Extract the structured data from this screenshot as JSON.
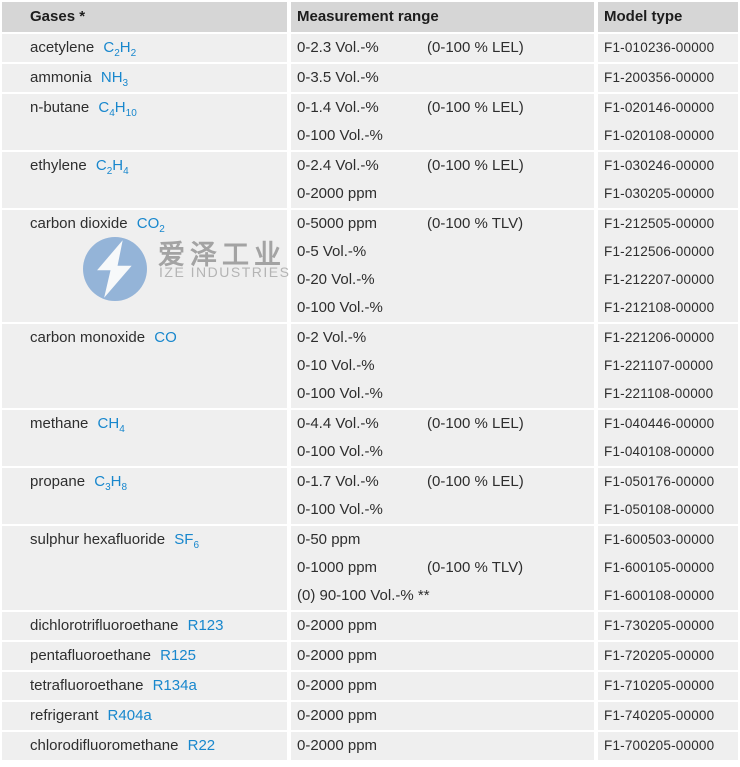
{
  "header": {
    "gases": "Gases *",
    "range": "Measurement range",
    "model": "Model type"
  },
  "watermark": {
    "cn": "爱泽工业",
    "en": "IZE INDUSTRIES",
    "logo": "ize-logo",
    "circle_color": "#85aad5",
    "text_color": "#9b9b9b"
  },
  "colors": {
    "accent_blue": "#1887cd",
    "header_bg": "#d6d6d6",
    "row_bg": "#efefef",
    "text_dark": "#2e2e2e"
  },
  "table": {
    "rows": [
      {
        "gas": "acetylene",
        "formula": "C{2}H{2}",
        "lines": [
          {
            "range": "0-2.3 Vol.-%",
            "note": "(0-100 % LEL)",
            "model": "F1-010236-00000"
          }
        ]
      },
      {
        "gas": "ammonia",
        "formula": "NH{3}",
        "lines": [
          {
            "range": "0-3.5 Vol.-%",
            "note": "",
            "model": "F1-200356-00000"
          }
        ]
      },
      {
        "gas": "n-butane",
        "formula": "C{4}H{10}",
        "lines": [
          {
            "range": "0-1.4 Vol.-%",
            "note": "(0-100 % LEL)",
            "model": "F1-020146-00000"
          },
          {
            "range": "0-100 Vol.-%",
            "note": "",
            "model": "F1-020108-00000"
          }
        ]
      },
      {
        "gas": "ethylene",
        "formula": "C{2}H{4}",
        "lines": [
          {
            "range": "0-2.4 Vol.-%",
            "note": "(0-100 % LEL)",
            "model": "F1-030246-00000"
          },
          {
            "range": "0-2000 ppm",
            "note": "",
            "model": "F1-030205-00000"
          }
        ]
      },
      {
        "gas": "carbon dioxide",
        "formula": "CO{2}",
        "lines": [
          {
            "range": "0-5000 ppm",
            "note": "(0-100 % TLV)",
            "model": "F1-212505-00000"
          },
          {
            "range": "0-5 Vol.-%",
            "note": "",
            "model": "F1-212506-00000"
          },
          {
            "range": "0-20 Vol.-%",
            "note": "",
            "model": "F1-212207-00000"
          },
          {
            "range": "0-100 Vol.-%",
            "note": "",
            "model": "F1-212108-00000"
          }
        ]
      },
      {
        "gas": "carbon monoxide",
        "formula": "CO",
        "lines": [
          {
            "range": "0-2 Vol.-%",
            "note": "",
            "model": "F1-221206-00000"
          },
          {
            "range": "0-10 Vol.-%",
            "note": "",
            "model": "F1-221107-00000"
          },
          {
            "range": "0-100 Vol.-%",
            "note": "",
            "model": "F1-221108-00000"
          }
        ]
      },
      {
        "gas": "methane",
        "formula": "CH{4}",
        "lines": [
          {
            "range": "0-4.4 Vol.-%",
            "note": "(0-100 % LEL)",
            "model": "F1-040446-00000"
          },
          {
            "range": "0-100 Vol.-%",
            "note": "",
            "model": "F1-040108-00000"
          }
        ]
      },
      {
        "gas": "propane",
        "formula": "C{3}H{8}",
        "lines": [
          {
            "range": "0-1.7 Vol.-%",
            "note": "(0-100 % LEL)",
            "model": "F1-050176-00000"
          },
          {
            "range": "0-100 Vol.-%",
            "note": "",
            "model": "F1-050108-00000"
          }
        ]
      },
      {
        "gas": "sulphur hexafluoride",
        "formula": "SF{6}",
        "lines": [
          {
            "range": "0-50 ppm",
            "note": "",
            "model": "F1-600503-00000"
          },
          {
            "range": "0-1000 ppm",
            "note": "(0-100 % TLV)",
            "model": "F1-600105-00000"
          },
          {
            "range": "(0) 90-100 Vol.-% **",
            "note": "",
            "model": "F1-600108-00000"
          }
        ]
      },
      {
        "gas": "dichlorotrifluoroethane",
        "formula": "R123",
        "lines": [
          {
            "range": "0-2000 ppm",
            "note": "",
            "model": "F1-730205-00000"
          }
        ]
      },
      {
        "gas": "pentafluoroethane",
        "formula": "R125",
        "lines": [
          {
            "range": "0-2000 ppm",
            "note": "",
            "model": "F1-720205-00000"
          }
        ]
      },
      {
        "gas": "tetrafluoroethane",
        "formula": "R134a",
        "lines": [
          {
            "range": "0-2000 ppm",
            "note": "",
            "model": "F1-710205-00000"
          }
        ]
      },
      {
        "gas": "refrigerant",
        "formula": "R404a",
        "lines": [
          {
            "range": "0-2000 ppm",
            "note": "",
            "model": "F1-740205-00000"
          }
        ]
      },
      {
        "gas": "chlorodifluoromethane",
        "formula": "R22",
        "lines": [
          {
            "range": "0-2000 ppm",
            "note": "",
            "model": "F1-700205-00000"
          }
        ]
      }
    ]
  }
}
